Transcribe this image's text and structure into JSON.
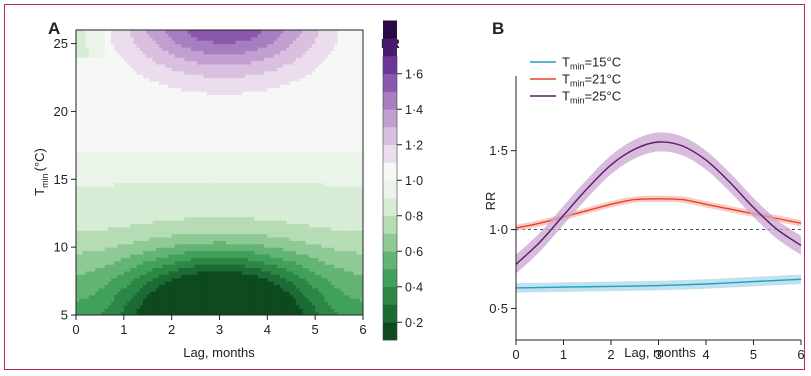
{
  "chart_data": [
    {
      "type": "heatmap",
      "panel": "A",
      "xlabel": "Lag, months",
      "ylabel_main": "T",
      "ylabel_sub": "min",
      "ylabel_unit": "(°C)",
      "x_ticks": [
        "0",
        "1",
        "2",
        "3",
        "4",
        "5",
        "6"
      ],
      "y_ticks": [
        "5",
        "10",
        "15",
        "20",
        "25"
      ],
      "xlim": [
        0,
        6
      ],
      "ylim": [
        5,
        26
      ],
      "colorbar": {
        "title": "RR",
        "ticks": [
          "0·2",
          "0·4",
          "0·6",
          "0·8",
          "1·0",
          "1·2",
          "1·4",
          "1·6"
        ],
        "tick_values": [
          0.2,
          0.4,
          0.6,
          0.8,
          1.0,
          1.2,
          1.4,
          1.6
        ],
        "range": [
          0.1,
          1.7
        ],
        "level_step": 0.1,
        "colors": [
          "#0d4a1f",
          "#1c6b34",
          "#2c8747",
          "#41a05a",
          "#63b475",
          "#8fca96",
          "#b6dcb6",
          "#d6ecd4",
          "#ebf4e9",
          "#f7f7f5",
          "#ebdcee",
          "#d9c0e0",
          "#c1a0d1",
          "#a77ec0",
          "#8a58ad",
          "#6c3597",
          "#481a70",
          "#2a0a45"
        ]
      }
    },
    {
      "type": "line",
      "panel": "B",
      "xlabel": "Lag, months",
      "ylabel": "RR",
      "x_ticks": [
        "0",
        "1",
        "2",
        "3",
        "4",
        "5",
        "6"
      ],
      "y_ticks": [
        "0·5",
        "1·0",
        "1·5"
      ],
      "y_tick_values": [
        0.5,
        1.0,
        1.5
      ],
      "xlim": [
        0,
        6
      ],
      "ylim": [
        0.3,
        2.1
      ],
      "reference_line": 1.0,
      "legend_position": "top-left",
      "series": [
        {
          "name_main": "T",
          "name_sub": "min",
          "name_tail": "=15°C",
          "color": "#1f9fc4",
          "band": "#a9d8e8",
          "x": [
            0,
            1,
            2,
            3,
            4,
            5,
            6
          ],
          "y": [
            0.63,
            0.635,
            0.64,
            0.645,
            0.655,
            0.67,
            0.685
          ],
          "band_width": 0.03
        },
        {
          "name_main": "T",
          "name_sub": "min",
          "name_tail": "=21°C",
          "color": "#e8402c",
          "band": "#f7b9ae",
          "x": [
            0,
            0.5,
            1,
            1.5,
            2,
            2.5,
            3,
            3.5,
            4,
            4.5,
            5,
            5.5,
            6
          ],
          "y": [
            1.01,
            1.04,
            1.08,
            1.12,
            1.16,
            1.19,
            1.195,
            1.19,
            1.16,
            1.13,
            1.1,
            1.07,
            1.04
          ],
          "band_width": 0.02
        },
        {
          "name_main": "T",
          "name_sub": "min",
          "name_tail": "=25°C",
          "color": "#5e1a66",
          "band": "#c9a6d2",
          "x": [
            0,
            0.5,
            1,
            1.5,
            2,
            2.5,
            3,
            3.5,
            4,
            4.5,
            5,
            5.5,
            6
          ],
          "y": [
            0.78,
            0.92,
            1.09,
            1.26,
            1.41,
            1.51,
            1.555,
            1.53,
            1.44,
            1.3,
            1.14,
            1.0,
            0.9
          ],
          "band_width": 0.06
        }
      ]
    }
  ]
}
